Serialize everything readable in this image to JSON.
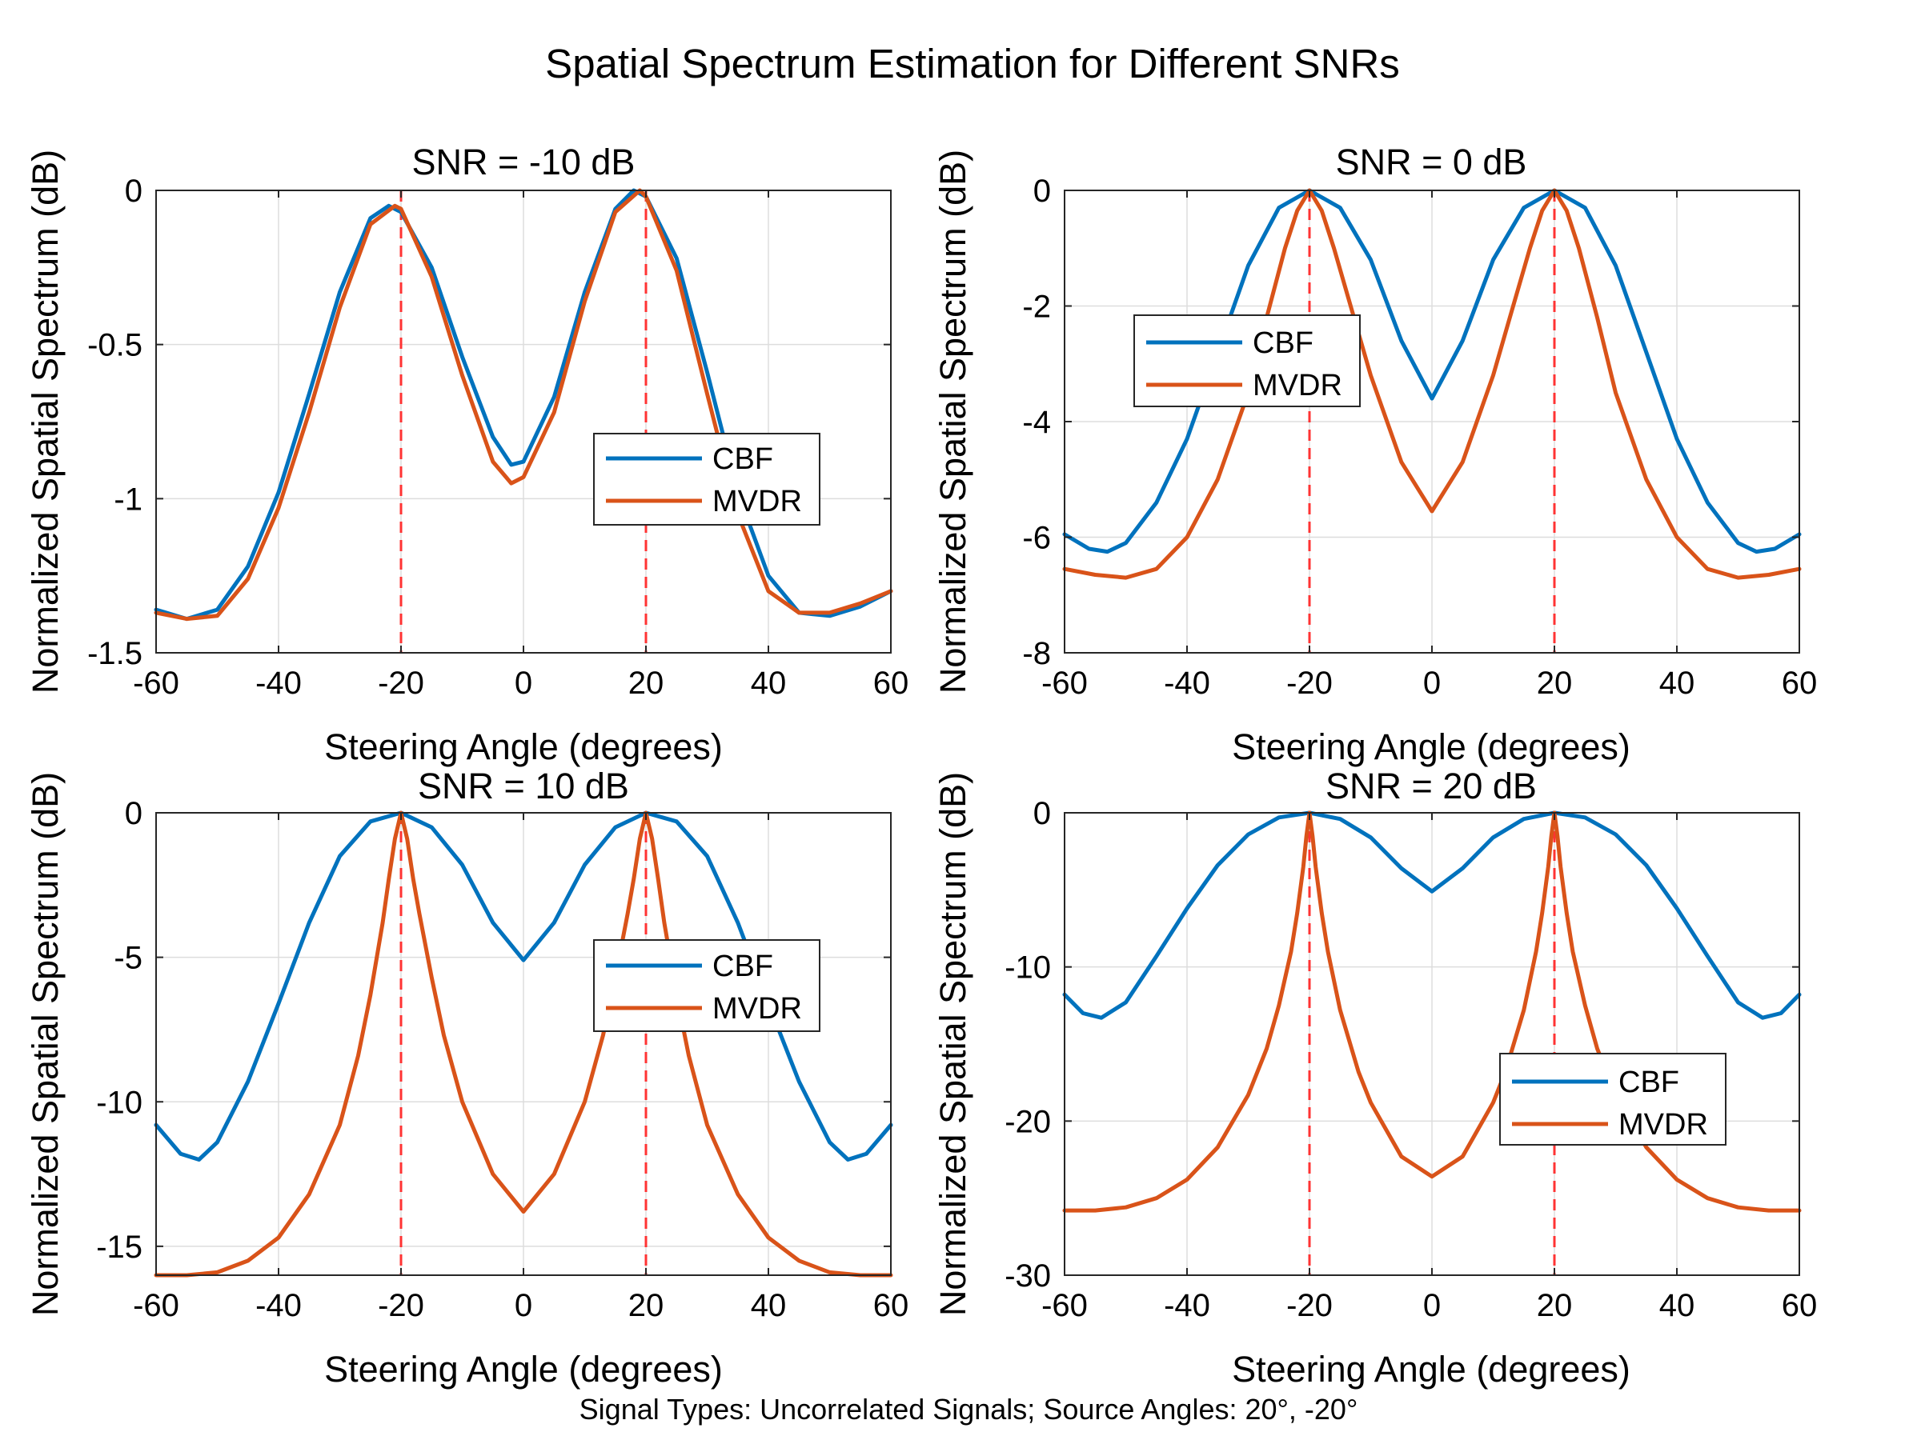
{
  "figure": {
    "suptitle": "Spatial Spectrum Estimation for Different SNRs",
    "footer": "Signal Types: Uncorrelated Signals; Source Angles: 20°, -20°"
  },
  "colors": {
    "cbf": "#0072BD",
    "mvdr": "#D95319",
    "source": "#FF3333",
    "grid": "#DDDDDD"
  },
  "chart_data": [
    {
      "type": "line",
      "title": "SNR = -10 dB",
      "xlabel": "Steering Angle (degrees)",
      "ylabel": "Normalized Spatial Spectrum (dB)",
      "xlim": [
        -60,
        60
      ],
      "ylim": [
        -1.5,
        0
      ],
      "xticks": [
        -60,
        -40,
        -20,
        0,
        20,
        40,
        60
      ],
      "xtick_labels": [
        "-60",
        "-40",
        "-20",
        "0",
        "20",
        "40",
        "60"
      ],
      "yticks": [
        -1.5,
        -1,
        -0.5,
        0
      ],
      "ytick_labels": [
        "-1.5",
        "-1",
        "-0.5",
        "0"
      ],
      "grid": true,
      "legend_position": "center-right",
      "source_angles": [
        -20,
        20
      ],
      "series": [
        {
          "name": "CBF",
          "x": [
            -60,
            -55,
            -50,
            -45,
            -40,
            -35,
            -30,
            -25,
            -22,
            -20,
            -15,
            -10,
            -5,
            -2,
            0,
            5,
            10,
            15,
            18,
            20,
            25,
            30,
            35,
            40,
            45,
            50,
            55,
            60
          ],
          "y": [
            -1.36,
            -1.39,
            -1.36,
            -1.22,
            -0.98,
            -0.66,
            -0.33,
            -0.09,
            -0.05,
            -0.07,
            -0.25,
            -0.54,
            -0.8,
            -0.89,
            -0.88,
            -0.67,
            -0.33,
            -0.06,
            0,
            -0.02,
            -0.22,
            -0.59,
            -0.98,
            -1.25,
            -1.37,
            -1.38,
            -1.35,
            -1.3
          ]
        },
        {
          "name": "MVDR",
          "x": [
            -60,
            -55,
            -50,
            -45,
            -40,
            -35,
            -30,
            -25,
            -21,
            -20,
            -15,
            -10,
            -5,
            -2,
            0,
            5,
            10,
            15,
            19,
            20,
            25,
            30,
            35,
            40,
            45,
            50,
            55,
            60
          ],
          "y": [
            -1.37,
            -1.39,
            -1.38,
            -1.26,
            -1.03,
            -0.72,
            -0.38,
            -0.11,
            -0.05,
            -0.06,
            -0.28,
            -0.6,
            -0.88,
            -0.95,
            -0.93,
            -0.72,
            -0.36,
            -0.07,
            0,
            -0.02,
            -0.26,
            -0.66,
            -1.05,
            -1.3,
            -1.37,
            -1.37,
            -1.34,
            -1.3
          ]
        }
      ]
    },
    {
      "type": "line",
      "title": "SNR = 0 dB",
      "xlabel": "Steering Angle (degrees)",
      "ylabel": "Normalized Spatial Spectrum (dB)",
      "xlim": [
        -60,
        60
      ],
      "ylim": [
        -8,
        0
      ],
      "xticks": [
        -60,
        -40,
        -20,
        0,
        20,
        40,
        60
      ],
      "xtick_labels": [
        "-60",
        "-40",
        "-20",
        "0",
        "20",
        "40",
        "60"
      ],
      "yticks": [
        -8,
        -6,
        -4,
        -2,
        0
      ],
      "ytick_labels": [
        "-8",
        "-6",
        "-4",
        "-2",
        "0"
      ],
      "grid": true,
      "legend_position": "upper-left",
      "source_angles": [
        -20,
        20
      ],
      "series": [
        {
          "name": "CBF",
          "x": [
            -60,
            -56,
            -53,
            -50,
            -45,
            -40,
            -35,
            -30,
            -25,
            -20,
            -15,
            -10,
            -5,
            0,
            5,
            10,
            15,
            20,
            25,
            30,
            35,
            40,
            45,
            50,
            53,
            56,
            60
          ],
          "y": [
            -5.95,
            -6.2,
            -6.25,
            -6.1,
            -5.4,
            -4.3,
            -2.8,
            -1.3,
            -0.3,
            0,
            -0.3,
            -1.2,
            -2.6,
            -3.6,
            -2.6,
            -1.2,
            -0.3,
            0,
            -0.3,
            -1.3,
            -2.8,
            -4.3,
            -5.4,
            -6.1,
            -6.25,
            -6.2,
            -5.95
          ]
        },
        {
          "name": "MVDR",
          "x": [
            -60,
            -55,
            -50,
            -45,
            -40,
            -35,
            -30,
            -27,
            -24,
            -22,
            -20,
            -18,
            -16,
            -13,
            -10,
            -5,
            0,
            5,
            10,
            13,
            16,
            18,
            20,
            22,
            24,
            27,
            30,
            35,
            40,
            45,
            50,
            55,
            60
          ],
          "y": [
            -6.55,
            -6.65,
            -6.7,
            -6.55,
            -6.0,
            -5.0,
            -3.5,
            -2.2,
            -1.0,
            -0.35,
            0,
            -0.35,
            -1.0,
            -2.1,
            -3.2,
            -4.7,
            -5.55,
            -4.7,
            -3.2,
            -2.1,
            -1.0,
            -0.35,
            0,
            -0.35,
            -1.0,
            -2.2,
            -3.5,
            -5.0,
            -6.0,
            -6.55,
            -6.7,
            -6.65,
            -6.55
          ]
        }
      ]
    },
    {
      "type": "line",
      "title": "SNR = 10 dB",
      "xlabel": "Steering Angle (degrees)",
      "ylabel": "Normalized Spatial Spectrum (dB)",
      "xlim": [
        -60,
        60
      ],
      "ylim": [
        -16,
        0
      ],
      "xticks": [
        -60,
        -40,
        -20,
        0,
        20,
        40,
        60
      ],
      "xtick_labels": [
        "-60",
        "-40",
        "-20",
        "0",
        "20",
        "40",
        "60"
      ],
      "yticks": [
        -15,
        -10,
        -5,
        0
      ],
      "ytick_labels": [
        "-15",
        "-10",
        "-5",
        "0"
      ],
      "grid": true,
      "legend_position": "center-right",
      "source_angles": [
        -20,
        20
      ],
      "series": [
        {
          "name": "CBF",
          "x": [
            -60,
            -56,
            -53,
            -50,
            -45,
            -40,
            -35,
            -30,
            -25,
            -20,
            -15,
            -10,
            -5,
            0,
            5,
            10,
            15,
            20,
            25,
            30,
            35,
            40,
            45,
            50,
            53,
            56,
            60
          ],
          "y": [
            -10.8,
            -11.8,
            -12.0,
            -11.4,
            -9.3,
            -6.6,
            -3.8,
            -1.5,
            -0.3,
            0,
            -0.5,
            -1.8,
            -3.8,
            -5.1,
            -3.8,
            -1.8,
            -0.5,
            0,
            -0.3,
            -1.5,
            -3.8,
            -6.6,
            -9.3,
            -11.4,
            -12.0,
            -11.8,
            -10.8
          ]
        },
        {
          "name": "MVDR",
          "x": [
            -60,
            -55,
            -50,
            -45,
            -40,
            -35,
            -30,
            -27,
            -25,
            -23,
            -22,
            -21,
            -20,
            -19,
            -18,
            -17,
            -15,
            -13,
            -10,
            -5,
            0,
            5,
            10,
            13,
            15,
            17,
            18,
            19,
            20,
            21,
            22,
            23,
            25,
            27,
            30,
            35,
            40,
            45,
            50,
            55,
            60
          ],
          "y": [
            -16.0,
            -16.0,
            -15.9,
            -15.5,
            -14.7,
            -13.2,
            -10.8,
            -8.4,
            -6.3,
            -3.8,
            -2.3,
            -0.9,
            0,
            -0.9,
            -2.3,
            -3.5,
            -5.7,
            -7.7,
            -10.0,
            -12.5,
            -13.8,
            -12.5,
            -10.0,
            -7.7,
            -5.7,
            -3.5,
            -2.3,
            -0.9,
            0,
            -0.9,
            -2.3,
            -3.8,
            -6.3,
            -8.4,
            -10.8,
            -13.2,
            -14.7,
            -15.5,
            -15.9,
            -16.0,
            -16.0
          ]
        }
      ]
    },
    {
      "type": "line",
      "title": "SNR = 20 dB",
      "xlabel": "Steering Angle (degrees)",
      "ylabel": "Normalized Spatial Spectrum (dB)",
      "xlim": [
        -60,
        60
      ],
      "ylim": [
        -30,
        0
      ],
      "xticks": [
        -60,
        -40,
        -20,
        0,
        20,
        40,
        60
      ],
      "xtick_labels": [
        "-60",
        "-40",
        "-20",
        "0",
        "20",
        "40",
        "60"
      ],
      "yticks": [
        -30,
        -20,
        -10,
        0
      ],
      "ytick_labels": [
        "-30",
        "-20",
        "-10",
        "0"
      ],
      "grid": true,
      "legend_position": "lower-right",
      "source_angles": [
        -20,
        20
      ],
      "series": [
        {
          "name": "CBF",
          "x": [
            -60,
            -57,
            -54,
            -50,
            -45,
            -40,
            -35,
            -30,
            -25,
            -20,
            -15,
            -10,
            -5,
            0,
            5,
            10,
            15,
            20,
            25,
            30,
            35,
            40,
            45,
            50,
            54,
            57,
            60
          ],
          "y": [
            -11.8,
            -13.0,
            -13.3,
            -12.3,
            -9.3,
            -6.2,
            -3.4,
            -1.4,
            -0.3,
            0,
            -0.4,
            -1.6,
            -3.6,
            -5.1,
            -3.6,
            -1.6,
            -0.4,
            0,
            -0.3,
            -1.4,
            -3.4,
            -6.2,
            -9.3,
            -12.3,
            -13.3,
            -13.0,
            -11.8
          ]
        },
        {
          "name": "MVDR",
          "x": [
            -60,
            -55,
            -50,
            -45,
            -40,
            -35,
            -30,
            -27,
            -25,
            -23,
            -22,
            -21,
            -20.5,
            -20,
            -19.5,
            -19,
            -18,
            -17,
            -15,
            -12,
            -10,
            -5,
            0,
            5,
            10,
            12,
            15,
            17,
            18,
            19,
            19.5,
            20,
            20.5,
            21,
            22,
            23,
            25,
            27,
            30,
            35,
            40,
            45,
            50,
            55,
            60
          ],
          "y": [
            -25.8,
            -25.8,
            -25.6,
            -25.0,
            -23.8,
            -21.7,
            -18.3,
            -15.3,
            -12.5,
            -9.0,
            -6.5,
            -3.5,
            -1.5,
            0,
            -1.5,
            -3.5,
            -6.5,
            -9.0,
            -12.8,
            -16.8,
            -18.8,
            -22.3,
            -23.6,
            -22.3,
            -18.8,
            -16.8,
            -12.8,
            -9.0,
            -6.5,
            -3.5,
            -1.5,
            0,
            -1.5,
            -3.5,
            -6.5,
            -9.0,
            -12.5,
            -15.3,
            -18.3,
            -21.7,
            -23.8,
            -25.0,
            -25.6,
            -25.8,
            -25.8
          ]
        }
      ]
    }
  ]
}
